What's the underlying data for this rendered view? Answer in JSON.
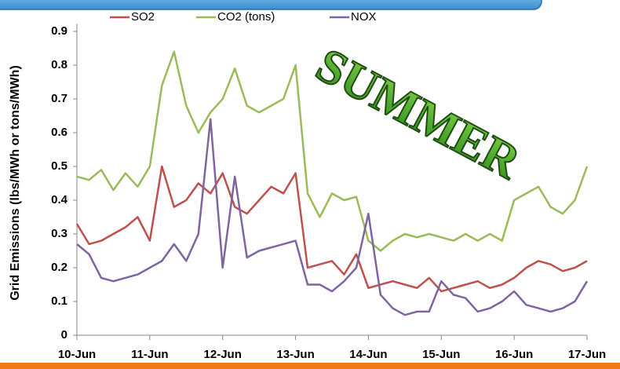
{
  "chart_data": {
    "type": "line",
    "y_label": "Grid Emissions (lbs/MWh or tons/MWh)",
    "annotation": "SUMMER",
    "categories": [
      "10-Jun",
      null,
      null,
      null,
      null,
      null,
      "11-Jun",
      null,
      null,
      null,
      null,
      null,
      "12-Jun",
      null,
      null,
      null,
      null,
      null,
      "13-Jun",
      null,
      null,
      null,
      null,
      null,
      "14-Jun",
      null,
      null,
      null,
      null,
      null,
      "15-Jun",
      null,
      null,
      null,
      null,
      null,
      "16-Jun",
      null,
      null,
      null,
      null,
      null,
      "17-Jun"
    ],
    "series": [
      {
        "name": "SO2",
        "color": "#c0504d",
        "values": [
          0.33,
          0.27,
          0.28,
          0.3,
          0.32,
          0.35,
          0.28,
          0.5,
          0.38,
          0.4,
          0.45,
          0.42,
          0.48,
          0.38,
          0.36,
          0.4,
          0.44,
          0.42,
          0.48,
          0.2,
          0.21,
          0.22,
          0.18,
          0.24,
          0.14,
          0.15,
          0.16,
          0.15,
          0.14,
          0.17,
          0.13,
          0.14,
          0.15,
          0.16,
          0.14,
          0.15,
          0.17,
          0.2,
          0.22,
          0.21,
          0.19,
          0.2,
          0.22
        ]
      },
      {
        "name": "CO2 (tons)",
        "color": "#9bbb59",
        "values": [
          0.47,
          0.46,
          0.49,
          0.43,
          0.48,
          0.44,
          0.5,
          0.74,
          0.84,
          0.68,
          0.6,
          0.66,
          0.7,
          0.79,
          0.68,
          0.66,
          0.68,
          0.7,
          0.8,
          0.42,
          0.35,
          0.42,
          0.4,
          0.41,
          0.28,
          0.25,
          0.28,
          0.3,
          0.29,
          0.3,
          0.29,
          0.28,
          0.3,
          0.28,
          0.3,
          0.28,
          0.4,
          0.42,
          0.44,
          0.38,
          0.36,
          0.4,
          0.5
        ]
      },
      {
        "name": "NOX",
        "color": "#8064a2",
        "values": [
          0.27,
          0.24,
          0.17,
          0.16,
          0.17,
          0.18,
          0.2,
          0.22,
          0.27,
          0.22,
          0.3,
          0.64,
          0.2,
          0.47,
          0.23,
          0.25,
          0.26,
          0.27,
          0.28,
          0.15,
          0.15,
          0.13,
          0.16,
          0.2,
          0.36,
          0.12,
          0.08,
          0.06,
          0.07,
          0.07,
          0.16,
          0.12,
          0.11,
          0.07,
          0.08,
          0.1,
          0.13,
          0.09,
          0.08,
          0.07,
          0.08,
          0.1,
          0.16
        ]
      }
    ],
    "ylim": [
      0,
      0.9
    ],
    "yticks": [
      0,
      0.1,
      0.2,
      0.3,
      0.4,
      0.5,
      0.6,
      0.7,
      0.8,
      0.9
    ],
    "grid": false
  }
}
